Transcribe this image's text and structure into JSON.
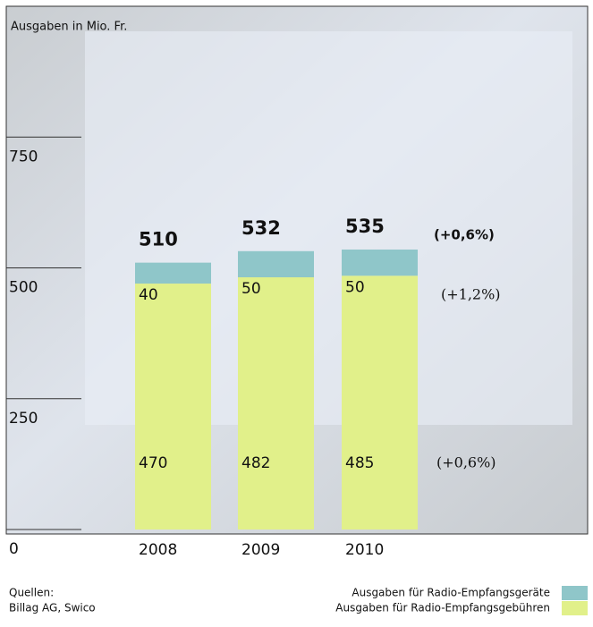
{
  "chart_data": {
    "type": "bar",
    "stacked": true,
    "y_label": "Ausgaben in Mio. Fr.",
    "categories": [
      "2008",
      "2009",
      "2010"
    ],
    "series": [
      {
        "name": "Ausgaben für Radio-Empfangsgebühren",
        "color": "#e1f08a",
        "values": [
          470,
          482,
          485
        ],
        "change": "(+0,6%)"
      },
      {
        "name": "Ausgaben für Radio-Empfangsgeräte",
        "color": "#8fc6c9",
        "values": [
          40,
          50,
          50
        ],
        "change": "(+1,2%)"
      }
    ],
    "totals": [
      510,
      532,
      535
    ],
    "total_change": "(+0,6%)",
    "ylim": [
      0,
      1000
    ],
    "yticks": [
      0,
      250,
      500,
      750
    ],
    "source_label": "Quellen:",
    "source": "Billag AG, Swico"
  }
}
